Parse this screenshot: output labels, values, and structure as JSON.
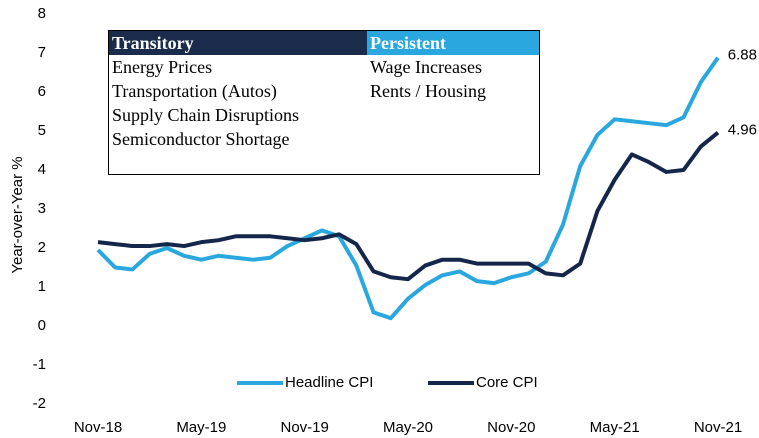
{
  "chart_data": {
    "type": "line",
    "ylabel": "Year-over-Year %",
    "categories": [
      "Nov-18",
      null,
      null,
      null,
      null,
      null,
      "May-19",
      null,
      null,
      null,
      null,
      null,
      "Nov-19",
      null,
      null,
      null,
      null,
      null,
      "May-20",
      null,
      null,
      null,
      null,
      null,
      "Nov-20",
      null,
      null,
      null,
      null,
      null,
      "May-21",
      null,
      null,
      null,
      null,
      null,
      "Nov-21"
    ],
    "series": [
      {
        "name": "Headline CPI",
        "color": "#2aa7df",
        "values": [
          1.95,
          1.5,
          1.45,
          1.85,
          2.0,
          1.8,
          1.7,
          1.8,
          1.75,
          1.7,
          1.75,
          2.05,
          2.25,
          2.45,
          2.3,
          1.55,
          0.35,
          0.2,
          0.7,
          1.05,
          1.3,
          1.4,
          1.15,
          1.1,
          1.25,
          1.35,
          1.65,
          2.6,
          4.1,
          4.9,
          5.3,
          5.25,
          5.2,
          5.15,
          5.35,
          6.25,
          6.88
        ]
      },
      {
        "name": "Core CPI",
        "color": "#14264a",
        "values": [
          2.15,
          2.1,
          2.05,
          2.05,
          2.1,
          2.05,
          2.15,
          2.2,
          2.3,
          2.3,
          2.3,
          2.25,
          2.2,
          2.25,
          2.35,
          2.1,
          1.4,
          1.25,
          1.2,
          1.55,
          1.7,
          1.7,
          1.6,
          1.6,
          1.6,
          1.6,
          1.35,
          1.3,
          1.6,
          2.95,
          3.75,
          4.4,
          4.2,
          3.95,
          4.0,
          4.6,
          4.96
        ]
      }
    ],
    "ylim": [
      -2,
      8
    ],
    "yticks": [
      -2,
      -1,
      0,
      1,
      2,
      3,
      4,
      5,
      6,
      7,
      8
    ],
    "grid": false,
    "legend": "bottom",
    "table": {
      "headers": [
        "Transitory",
        "Persistent"
      ],
      "rows": [
        [
          "Energy Prices",
          "Wage Increases"
        ],
        [
          "Transportation (Autos)",
          "Rents / Housing"
        ],
        [
          "Supply Chain Disruptions",
          ""
        ],
        [
          "Semiconductor Shortage",
          ""
        ]
      ]
    }
  }
}
